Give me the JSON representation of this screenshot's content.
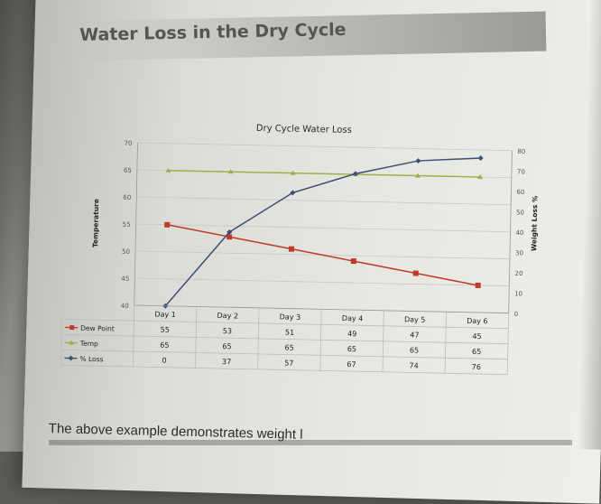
{
  "page": {
    "section_title": "Water Loss in the Dry Cycle",
    "body_text": "The above example demonstrates weight l"
  },
  "chart_data": {
    "type": "line",
    "title": "Dry Cycle Water Loss",
    "categories": [
      "Day 1",
      "Day 2",
      "Day 3",
      "Day 4",
      "Day 5",
      "Day 6"
    ],
    "left_axis": {
      "label": "Temperature",
      "ylim": [
        40,
        70
      ],
      "ticks": [
        40,
        45,
        50,
        55,
        60,
        65,
        70
      ]
    },
    "right_axis": {
      "label": "Weight Loss %",
      "ylim": [
        0,
        80
      ],
      "ticks": [
        0,
        10,
        20,
        30,
        40,
        50,
        60,
        70,
        80
      ]
    },
    "series": [
      {
        "name": "Dew Point",
        "axis": "left",
        "color": "#c0392b",
        "marker": "square",
        "values": [
          55,
          53,
          51,
          49,
          47,
          45
        ]
      },
      {
        "name": "Temp",
        "axis": "left",
        "color": "#9bb24a",
        "marker": "triangle",
        "values": [
          65,
          65,
          65,
          65,
          65,
          65
        ]
      },
      {
        "name": "% Loss",
        "axis": "right",
        "color": "#3c4f78",
        "marker": "diamond",
        "values": [
          0,
          37,
          57,
          67,
          74,
          76
        ]
      }
    ],
    "grid": true,
    "legend": "data-table"
  }
}
